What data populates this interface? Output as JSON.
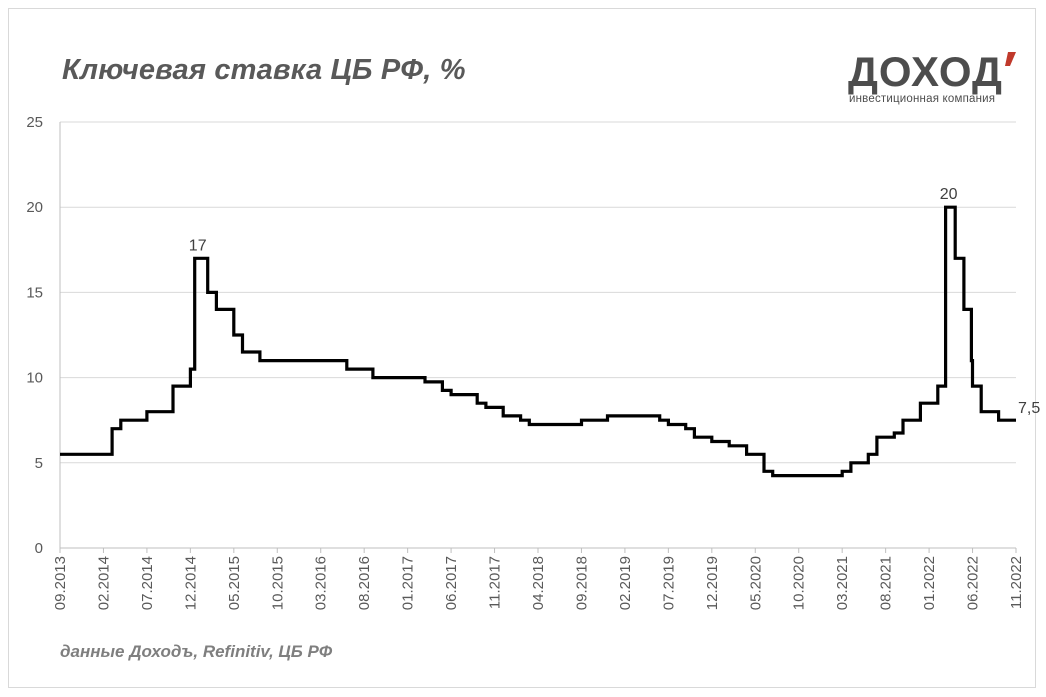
{
  "title": "Ключевая ставка ЦБ РФ, %",
  "source": "данные Доходъ, Refinitiv, ЦБ РФ",
  "logo": {
    "word": "ДОХОД",
    "subtitle": "инвестиционная компания",
    "accent_color": "#c0392b"
  },
  "colors": {
    "line": "#000000",
    "grid": "#d9d9d9",
    "axis": "#bfbfbf",
    "text": "#595959"
  },
  "chart_data": {
    "type": "line",
    "title": "Ключевая ставка ЦБ РФ, %",
    "xlabel": "",
    "ylabel": "",
    "ylim": [
      0,
      25
    ],
    "yticks": [
      0,
      5,
      10,
      15,
      20,
      25
    ],
    "grid": true,
    "xlim": [
      "2013-09",
      "2022-11"
    ],
    "xtick_labels": [
      "09.2013",
      "02.2014",
      "07.2014",
      "12.2014",
      "05.2015",
      "10.2015",
      "03.2016",
      "08.2016",
      "01.2017",
      "06.2017",
      "11.2017",
      "04.2018",
      "09.2018",
      "02.2019",
      "07.2019",
      "12.2019",
      "05.2020",
      "10.2020",
      "03.2021",
      "08.2021",
      "01.2022",
      "06.2022",
      "11.2022"
    ],
    "step": true,
    "series": [
      {
        "points": [
          [
            "2013-09",
            5.5
          ],
          [
            "2014-03",
            7
          ],
          [
            "2014-04",
            7.5
          ],
          [
            "2014-07",
            8
          ],
          [
            "2014-10",
            9.5
          ],
          [
            "2014-12",
            10.5
          ],
          [
            "2014-12-16",
            17
          ],
          [
            "2015-02",
            15
          ],
          [
            "2015-03",
            14
          ],
          [
            "2015-05",
            12.5
          ],
          [
            "2015-06",
            11.5
          ],
          [
            "2015-08",
            11
          ],
          [
            "2016-06",
            10.5
          ],
          [
            "2016-09",
            10
          ],
          [
            "2017-03",
            9.75
          ],
          [
            "2017-05",
            9.25
          ],
          [
            "2017-06",
            9
          ],
          [
            "2017-09",
            8.5
          ],
          [
            "2017-10",
            8.25
          ],
          [
            "2017-12",
            7.75
          ],
          [
            "2018-02",
            7.5
          ],
          [
            "2018-03",
            7.25
          ],
          [
            "2018-09",
            7.5
          ],
          [
            "2018-12",
            7.75
          ],
          [
            "2019-06",
            7.5
          ],
          [
            "2019-07",
            7.25
          ],
          [
            "2019-09",
            7
          ],
          [
            "2019-10",
            6.5
          ],
          [
            "2019-12",
            6.25
          ],
          [
            "2020-02",
            6
          ],
          [
            "2020-04",
            5.5
          ],
          [
            "2020-06",
            4.5
          ],
          [
            "2020-07",
            4.25
          ],
          [
            "2021-03",
            4.5
          ],
          [
            "2021-04",
            5
          ],
          [
            "2021-06",
            5.5
          ],
          [
            "2021-07",
            6.5
          ],
          [
            "2021-09",
            6.75
          ],
          [
            "2021-10",
            7.5
          ],
          [
            "2021-12",
            8.5
          ],
          [
            "2022-02",
            9.5
          ],
          [
            "2022-02-28",
            20
          ],
          [
            "2022-04",
            17
          ],
          [
            "2022-05",
            14
          ],
          [
            "2022-05-27",
            11
          ],
          [
            "2022-06",
            9.5
          ],
          [
            "2022-07",
            8
          ],
          [
            "2022-09",
            7.5
          ],
          [
            "2022-11",
            7.5
          ]
        ]
      }
    ],
    "data_labels": [
      {
        "x": "2014-12-16",
        "y": 17,
        "text": "17"
      },
      {
        "x": "2022-02-28",
        "y": 20,
        "text": "20"
      },
      {
        "x": "2022-11",
        "y": 7.5,
        "text": "7,5"
      }
    ]
  }
}
